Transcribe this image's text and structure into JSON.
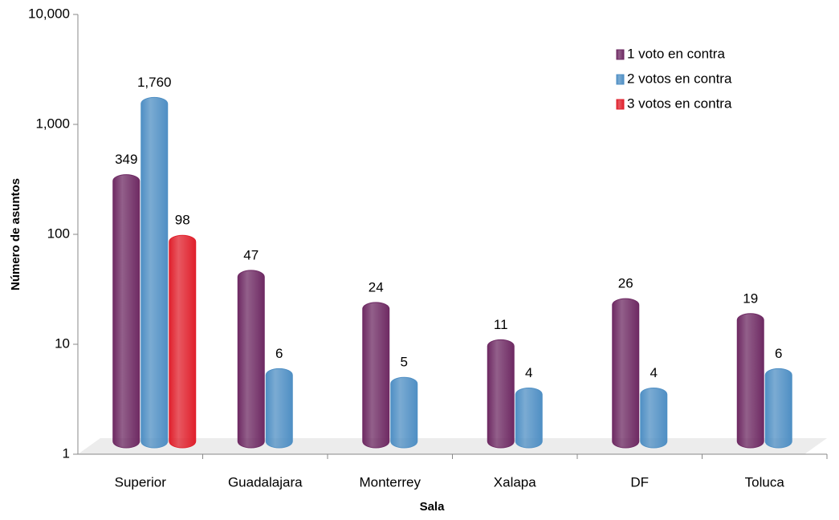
{
  "chart_data": {
    "type": "bar",
    "x_label": "Sala",
    "y_label": "Número de asuntos",
    "categories": [
      "Superior",
      "Guadalajara",
      "Monterrey",
      "Xalapa",
      "DF",
      "Toluca"
    ],
    "series": [
      {
        "name": "1 voto en contra",
        "color": "#6e2a63",
        "values": [
          349,
          47,
          24,
          11,
          26,
          19
        ]
      },
      {
        "name": "2 votos en contra",
        "color": "#4f8fc4",
        "values": [
          1760,
          6,
          5,
          4,
          4,
          6
        ],
        "value_labels": [
          "1,760",
          "6",
          "5",
          "4",
          "4",
          "6"
        ]
      },
      {
        "name": "3 votos en contra",
        "color": "#e0202c",
        "values": [
          98,
          null,
          null,
          null,
          null,
          null
        ]
      }
    ],
    "log_scale": true,
    "ylim": [
      1,
      10000
    ],
    "yticks": [
      1,
      10,
      100,
      {
        "value": 1000,
        "label": "1,000"
      },
      {
        "value": 10000,
        "label": "10,000"
      }
    ],
    "legend": "upper right"
  }
}
